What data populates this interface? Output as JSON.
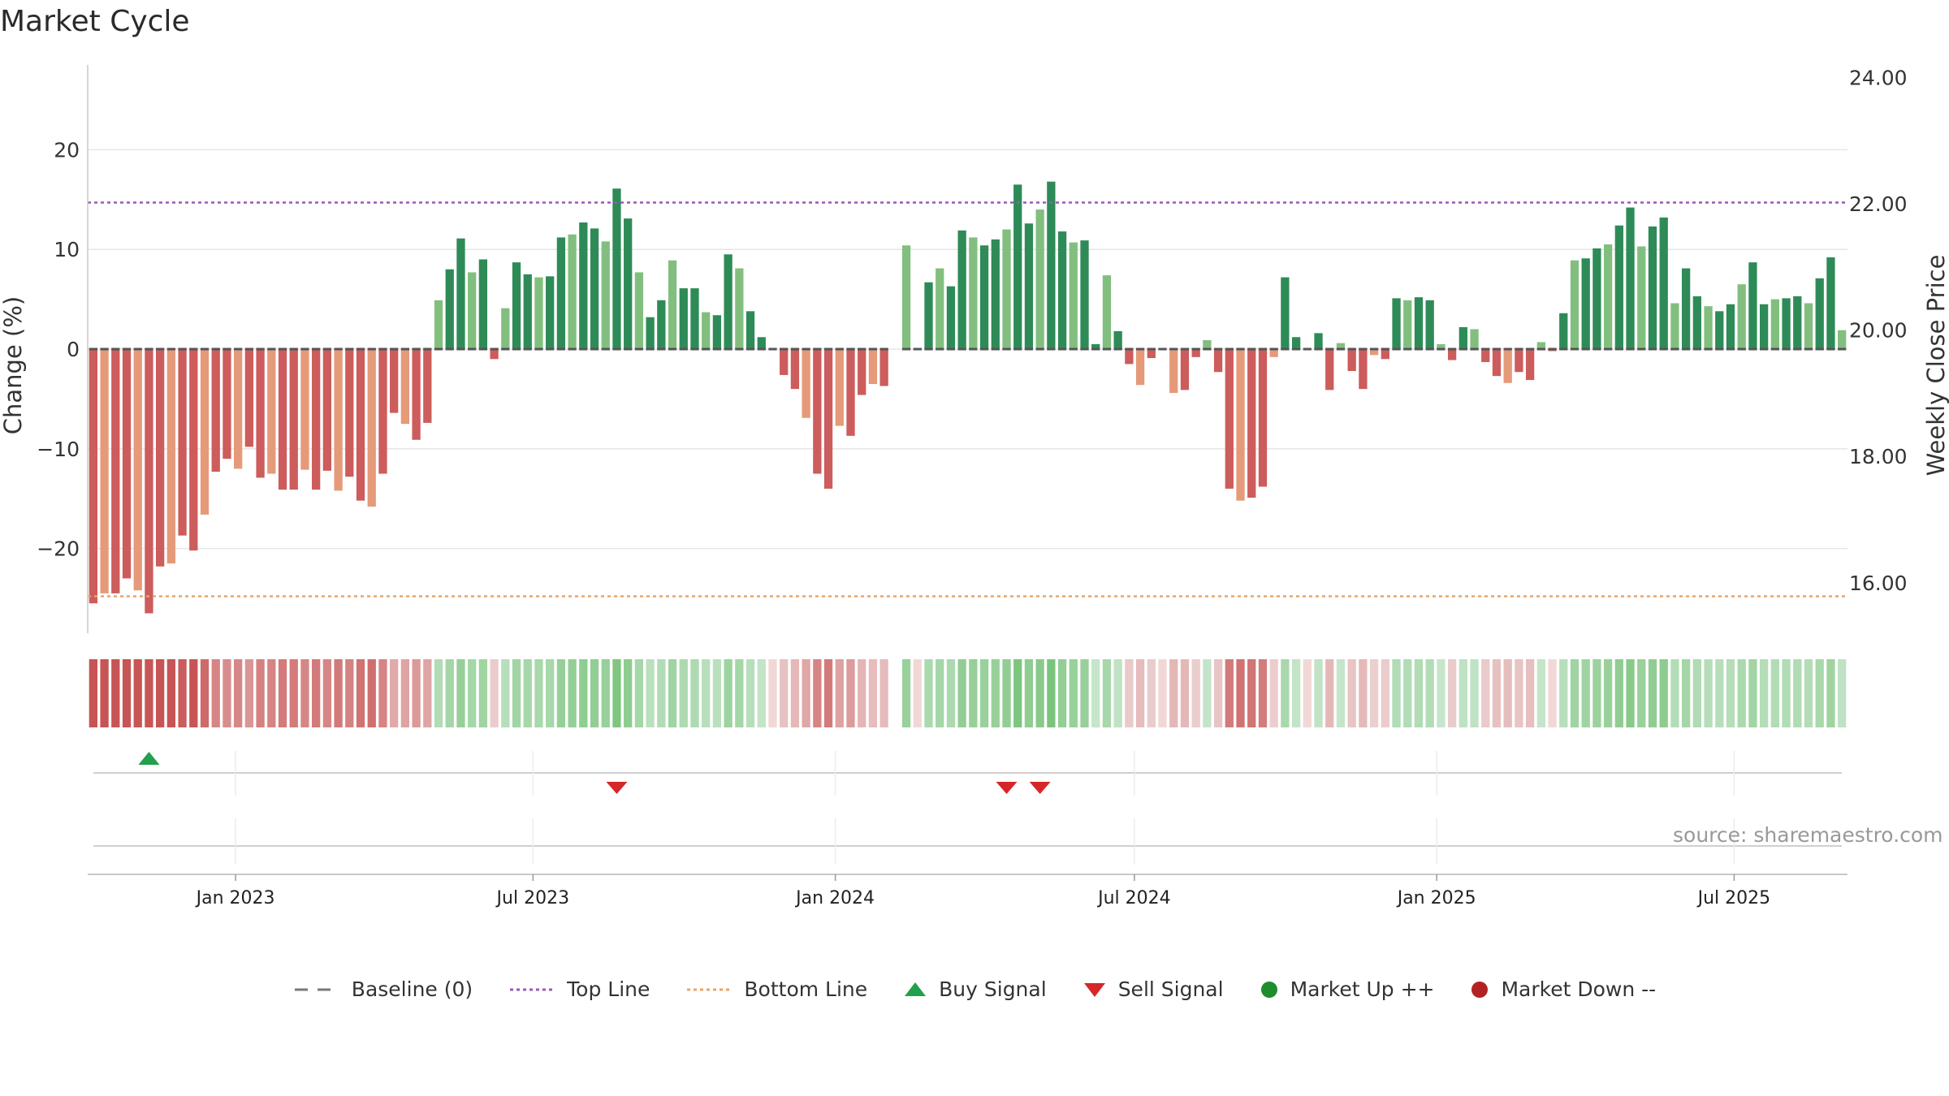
{
  "title": "Market Cycle",
  "source": "source: sharemaestro.com",
  "legend": [
    {
      "label": "Baseline (0)",
      "icon": "dash-line-icon",
      "color": "#777777"
    },
    {
      "label": "Top Line",
      "icon": "dotted-line-icon",
      "color": "#9b59b6"
    },
    {
      "label": "Bottom Line",
      "icon": "dotted-line-icon",
      "color": "#e8a46a"
    },
    {
      "label": "Buy Signal",
      "icon": "triangle-up-icon",
      "color": "#22a04b"
    },
    {
      "label": "Sell Signal",
      "icon": "triangle-down-icon",
      "color": "#d62728"
    },
    {
      "label": "Market Up ++",
      "icon": "circle-icon",
      "color": "#1f8c2d"
    },
    {
      "label": "Market Down --",
      "icon": "circle-icon",
      "color": "#b22222"
    }
  ],
  "chart_data": {
    "type": "bar",
    "ylabel": "Change (%)",
    "y2label": "Weekly Close Price",
    "ylim": [
      -28.5,
      28.5
    ],
    "yticks": [
      -20,
      -10,
      0,
      10,
      20
    ],
    "ytick_labels": [
      "−20",
      "−10",
      "0",
      "10",
      "20"
    ],
    "y2lim": [
      15.2,
      24.2
    ],
    "y2ticks": [
      16,
      18,
      20,
      22,
      24
    ],
    "y2tick_labels": [
      "16.00",
      "18.00",
      "20.00",
      "22.00",
      "24.00"
    ],
    "top_line": 14.7,
    "bottom_line": -24.8,
    "x_start": "2022-10-03",
    "x_end": "2025-09-08",
    "xticks": [
      "2023-01-01",
      "2023-07-01",
      "2024-01-01",
      "2024-07-01",
      "2025-01-01",
      "2025-07-01"
    ],
    "xtick_labels": [
      "Jan 2023",
      "Jul 2023",
      "Jan 2024",
      "Jul 2024",
      "Jan 2025",
      "Jul 2025"
    ],
    "grid": true,
    "values": [
      -25.5,
      -24.5,
      -24.5,
      -23,
      -24.2,
      -26.5,
      -21.8,
      -21.5,
      -18.7,
      -20.2,
      -16.6,
      -12.3,
      -11,
      -12,
      -9.8,
      -12.9,
      -12.5,
      -14.1,
      -14.1,
      -12.1,
      -14.1,
      -12.2,
      -14.2,
      -12.8,
      -15.2,
      -15.8,
      -12.5,
      -6.4,
      -7.5,
      -9.1,
      -7.4,
      4.9,
      8,
      11.1,
      7.7,
      9,
      -1,
      4.1,
      8.7,
      7.5,
      7.2,
      7.3,
      11.2,
      11.5,
      12.7,
      12.1,
      10.8,
      16.1,
      13.1,
      7.7,
      3.2,
      4.9,
      8.9,
      6.1,
      6.1,
      3.7,
      3.4,
      9.5,
      8.1,
      3.8,
      1.2,
      0,
      -2.6,
      -4,
      -6.9,
      -12.5,
      -14,
      -7.7,
      -8.7,
      -4.6,
      -3.5,
      -3.7,
      1.7,
      10.4,
      0,
      6.7,
      8.1,
      6.3,
      11.9,
      11.2,
      10.4,
      11,
      12,
      16.5,
      12.6,
      14,
      16.8,
      11.8,
      10.7,
      10.9,
      0.5,
      7.4,
      1.8,
      -1.5,
      -3.6,
      -0.9,
      0,
      -4.4,
      -4.1,
      -0.8,
      0.9,
      -2.3,
      -14,
      -15.2,
      -14.9,
      -13.8,
      -0.8,
      7.2,
      1.2,
      0,
      1.6,
      -4.1,
      0.6,
      -2.2,
      -4,
      -0.6,
      -1,
      5.1,
      4.9,
      5.2,
      4.9,
      0.5,
      -1.1,
      2.2,
      2,
      -1.3,
      -2.7,
      -3.4,
      -2.3,
      -3.1,
      0.7,
      -0.2,
      3.6,
      8.9,
      9.1,
      10.1,
      10.5,
      12.4,
      14.2,
      10.3,
      12.3,
      13.2,
      4.6,
      8.1,
      5.3,
      4.3,
      3.8,
      4.5,
      6.5,
      8.7,
      4.5,
      5,
      5.1,
      5.3,
      4.6,
      7.1,
      9.2,
      1.9
    ],
    "buy_signals": [
      5
    ],
    "sell_signals": [
      47,
      82,
      85
    ],
    "gap_weeks": [
      72
    ]
  }
}
